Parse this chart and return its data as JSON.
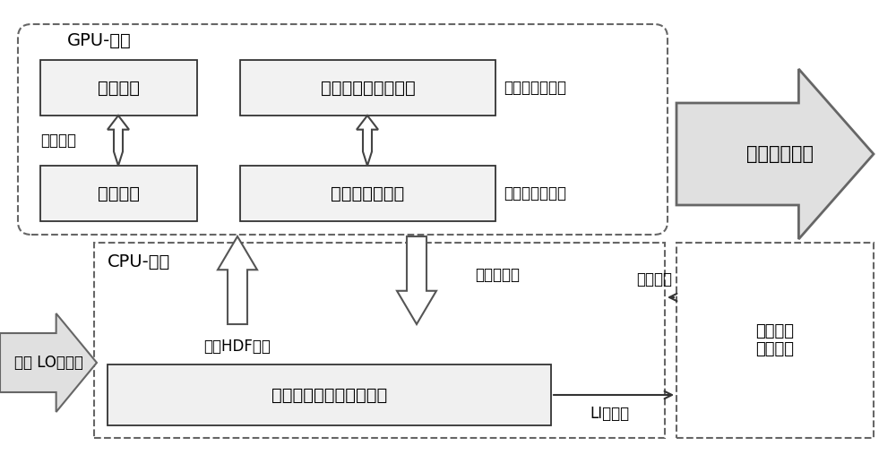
{
  "bg_color": "#ffffff",
  "gpu_label": "GPU-设备",
  "cpu_box_label": "CPU-主机",
  "boxes": {
    "dejia": "解压内核",
    "chaxun": "查询内核",
    "fuzhi": "幅値转换及投影计算",
    "shuju": "数据流挖掘内核",
    "scan": "扫描原始卫星影像数据流"
  },
  "labels": {
    "xinxi": "信息数据",
    "xilidu": "细粒度计算单元",
    "culidu": "粗粒度计算单元",
    "huancun": "缓存HDF数据",
    "yuchuli": "预处理数据",
    "weixing": "卫星 LO级数据",
    "shuju_caozong": "数据操纵",
    "li_data": "LI级数据",
    "lishi": "历史数据删除",
    "qianduan": "前端灾害\n监测识别"
  }
}
